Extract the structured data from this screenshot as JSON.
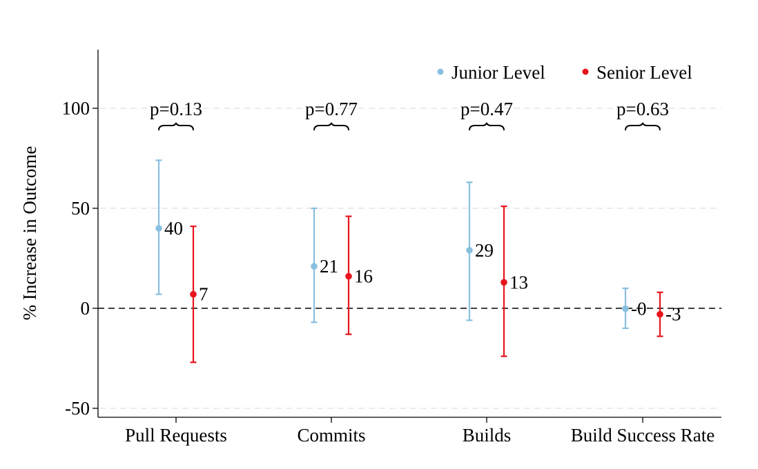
{
  "colors": {
    "junior": "#89bfdf",
    "senior": "#e8141c",
    "grid": "#e6e6e6",
    "axis": "#000000"
  },
  "chart_data": {
    "type": "scatter",
    "subtype": "point-estimate with confidence intervals",
    "title": "",
    "xlabel": "",
    "ylabel": "% Increase in Outcome",
    "ylim": [
      -55,
      130
    ],
    "yticks": [
      -50,
      0,
      50,
      100
    ],
    "grid": true,
    "reference_line": 0,
    "legend": {
      "position": "top-right",
      "entries": [
        "Junior Level",
        "Senior Level"
      ]
    },
    "categories": [
      "Pull Requests",
      "Commits",
      "Builds",
      "Build Success Rate"
    ],
    "series": [
      {
        "name": "Junior Level",
        "values": [
          40,
          21,
          29,
          -0.2
        ],
        "labels": [
          "40",
          "21",
          "29",
          "-0"
        ],
        "ci_low": [
          7,
          -7,
          -6,
          -10
        ],
        "ci_high": [
          74,
          50,
          63,
          10
        ]
      },
      {
        "name": "Senior Level",
        "values": [
          7,
          16,
          13,
          -3
        ],
        "labels": [
          "7",
          "16",
          "13",
          "-3"
        ],
        "ci_low": [
          -27,
          -13,
          -24,
          -14
        ],
        "ci_high": [
          41,
          46,
          51,
          8
        ]
      }
    ],
    "annotations": [
      {
        "category": "Pull Requests",
        "text": "p=0.13",
        "y": 100
      },
      {
        "category": "Commits",
        "text": "p=0.77",
        "y": 100
      },
      {
        "category": "Builds",
        "text": "p=0.47",
        "y": 100
      },
      {
        "category": "Build Success Rate",
        "text": "p=0.63",
        "y": 100
      }
    ]
  }
}
